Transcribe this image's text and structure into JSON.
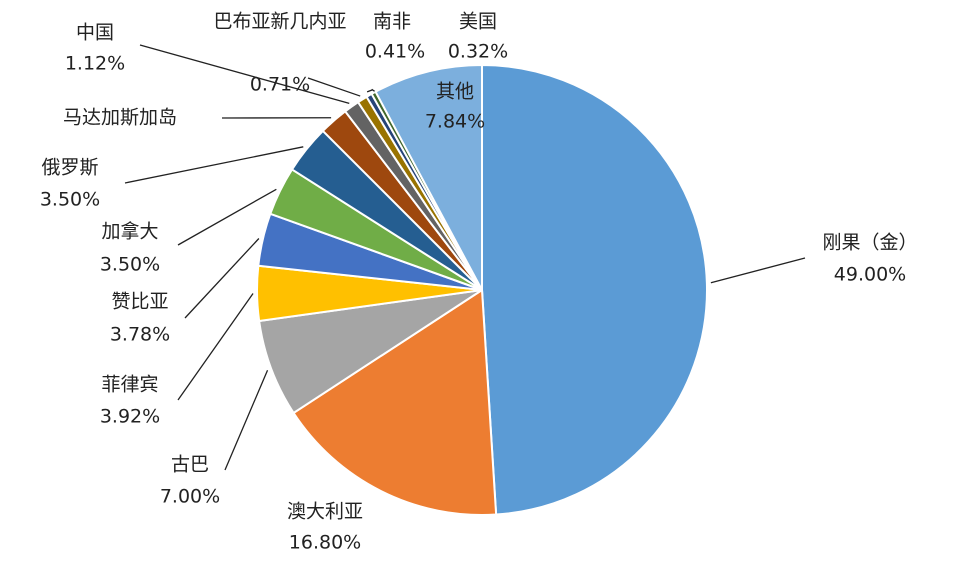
{
  "chart_data": {
    "type": "pie",
    "categories": [
      "刚果（金）",
      "澳大利亚",
      "古巴",
      "菲律宾",
      "赞比亚",
      "加拿大",
      "俄罗斯",
      "马达加斯加岛",
      "中国",
      "巴布亚新几内亚",
      "南非",
      "美国",
      "其他"
    ],
    "values": [
      49.0,
      16.8,
      7.0,
      3.92,
      3.78,
      3.5,
      3.5,
      2.1,
      1.12,
      0.71,
      0.41,
      0.32,
      7.84
    ],
    "value_labels": [
      "49.00%",
      "16.80%",
      "7.00%",
      "3.92%",
      "3.78%",
      "3.50%",
      "3.50%",
      null,
      "1.12%",
      "0.71%",
      "0.41%",
      "0.32%",
      "7.84%"
    ],
    "colors": [
      "#5b9bd5",
      "#ed7d31",
      "#a5a5a5",
      "#ffc000",
      "#4472c4",
      "#70ad47",
      "#255e91",
      "#9e480e",
      "#636363",
      "#997300",
      "#264478",
      "#43682b",
      "#7cafdd"
    ]
  }
}
